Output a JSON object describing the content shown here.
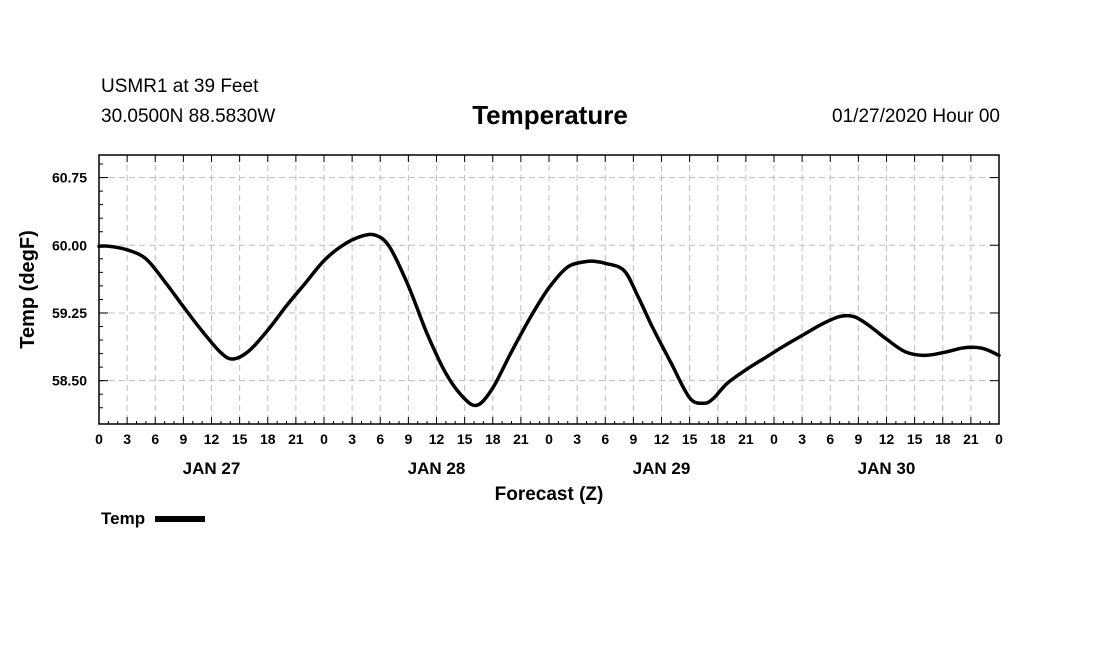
{
  "header": {
    "station": "USMR1 at 39 Feet",
    "coords": "30.0500N 88.5830W",
    "title": "Temperature",
    "datetime": "01/27/2020 Hour 00"
  },
  "legend": {
    "label": "Temp",
    "color": "#000000"
  },
  "chart_data": {
    "type": "line",
    "title": "Temperature",
    "xlabel": "Forecast (Z)",
    "ylabel": "Temp (degF)",
    "xlim": [
      0,
      96
    ],
    "ylim": [
      58.02,
      61.0
    ],
    "xticks": [
      0,
      3,
      6,
      9,
      12,
      15,
      18,
      21,
      24,
      27,
      30,
      33,
      36,
      39,
      42,
      45,
      48,
      51,
      54,
      57,
      60,
      63,
      66,
      69,
      72,
      75,
      78,
      81,
      84,
      87,
      90,
      93,
      96
    ],
    "xtick_labels": [
      "0",
      "3",
      "6",
      "9",
      "12",
      "15",
      "18",
      "21",
      "0",
      "3",
      "6",
      "9",
      "12",
      "15",
      "18",
      "21",
      "0",
      "3",
      "6",
      "9",
      "12",
      "15",
      "18",
      "21",
      "0",
      "3",
      "6",
      "9",
      "12",
      "15",
      "18",
      "21",
      "0"
    ],
    "day_labels": [
      {
        "x": 12,
        "label": "JAN 27"
      },
      {
        "x": 36,
        "label": "JAN 28"
      },
      {
        "x": 60,
        "label": "JAN 29"
      },
      {
        "x": 84,
        "label": "JAN 30"
      }
    ],
    "yticks": [
      58.5,
      59.25,
      60.0,
      60.75
    ],
    "ytick_labels": [
      "58.50",
      "59.25",
      "60.00",
      "60.75"
    ],
    "grid": true,
    "series": [
      {
        "name": "Temp",
        "color": "#000000",
        "x": [
          0,
          1,
          3,
          5,
          7,
          9,
          11,
          13,
          14.3,
          16,
          18,
          20,
          22,
          24,
          26,
          28,
          29.5,
          31,
          33,
          35,
          37,
          39,
          40.4,
          42,
          44,
          46,
          48,
          50,
          52,
          53,
          54,
          56,
          57.5,
          59,
          61,
          63,
          64.5,
          65.5,
          67,
          69,
          71,
          73,
          75,
          77,
          79,
          80.5,
          82,
          84,
          86,
          88,
          90,
          92,
          93.2,
          94.5,
          96
        ],
        "values": [
          59.99,
          59.99,
          59.95,
          59.85,
          59.6,
          59.32,
          59.05,
          58.81,
          58.74,
          58.83,
          59.06,
          59.33,
          59.58,
          59.83,
          60.0,
          60.1,
          60.11,
          59.98,
          59.55,
          59.02,
          58.58,
          58.3,
          58.23,
          58.42,
          58.82,
          59.2,
          59.53,
          59.76,
          59.82,
          59.82,
          59.8,
          59.72,
          59.43,
          59.1,
          58.7,
          58.31,
          58.25,
          58.3,
          58.47,
          58.62,
          58.75,
          58.88,
          59.0,
          59.12,
          59.21,
          59.21,
          59.12,
          58.96,
          58.82,
          58.78,
          58.81,
          58.86,
          58.87,
          58.85,
          58.78
        ]
      }
    ]
  }
}
